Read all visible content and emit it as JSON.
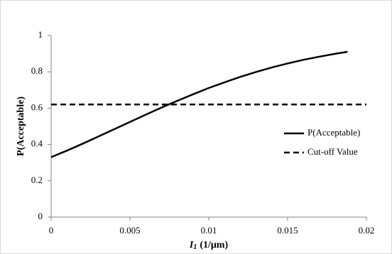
{
  "chart_data": {
    "type": "line",
    "x_label": {
      "symbol": "I",
      "subscript": "1",
      "unit": "(1/μm)"
    },
    "y_label": "P(Acceptable)",
    "xlim": [
      0,
      0.02
    ],
    "xticks": [
      0,
      0.005,
      0.01,
      0.015,
      0.02
    ],
    "ylim": [
      0,
      1
    ],
    "yticks": [
      0,
      0.2,
      0.4,
      0.6,
      0.8,
      1
    ],
    "grid": false,
    "legend": "right",
    "series": [
      {
        "name": "P(Acceptable)",
        "color": "#000000",
        "dash": "solid",
        "x": [
          0,
          0.001,
          0.002,
          0.003,
          0.004,
          0.005,
          0.006,
          0.007,
          0.008,
          0.009,
          0.01,
          0.011,
          0.012,
          0.013,
          0.014,
          0.015,
          0.016,
          0.017,
          0.018,
          0.0188
        ],
        "values": [
          0.33,
          0.366,
          0.404,
          0.444,
          0.484,
          0.524,
          0.564,
          0.603,
          0.64,
          0.676,
          0.711,
          0.742,
          0.772,
          0.799,
          0.824,
          0.846,
          0.866,
          0.883,
          0.899,
          0.91
        ]
      },
      {
        "name": "Cut-off Value",
        "color": "#000000",
        "dash": "dashed",
        "x": [
          0,
          0.02
        ],
        "values": [
          0.62,
          0.62
        ]
      }
    ]
  }
}
